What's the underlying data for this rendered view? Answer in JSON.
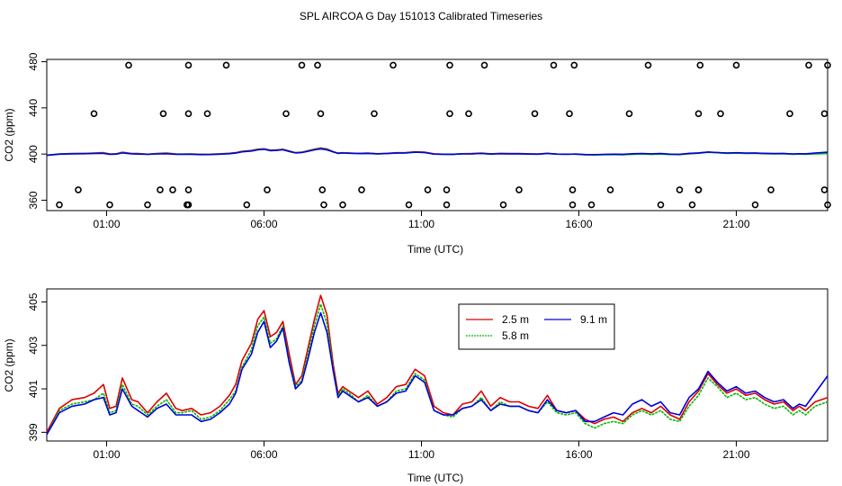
{
  "title": "SPL AIRCOA G  Day 151013  Calibrated Timeseries",
  "colors": {
    "2.5 m": "#dd0000",
    "5.8 m": "#00bb00",
    "9.1 m": "#0000dd"
  },
  "chart_data": [
    {
      "type": "line",
      "title": "SPL AIRCOA G  Day 151013  Calibrated Timeseries",
      "xlabel": "Time (UTC)",
      "ylabel": "CO2 (ppm)",
      "xlim": [
        -0.9,
        23.9
      ],
      "ylim": [
        351,
        482
      ],
      "x_ticks": [
        1,
        6,
        11,
        16,
        21
      ],
      "x_tick_labels": [
        "01:00",
        "06:00",
        "11:00",
        "16:00",
        "21:00"
      ],
      "y_ticks": [
        360,
        400,
        440,
        480
      ],
      "y_tick_labels": [
        "360",
        "400",
        "440",
        "480"
      ],
      "flag_markers": {
        "type": "scatter",
        "x": [
          -0.5,
          0.1,
          0.6,
          1.1,
          1.7,
          2.3,
          2.7,
          2.8,
          3.1,
          3.55,
          3.6,
          3.6,
          3.6,
          3.6,
          4.2,
          4.8,
          5.45,
          6.1,
          6.7,
          7.2,
          7.7,
          7.8,
          7.85,
          7.9,
          8.5,
          9.1,
          9.5,
          10.1,
          10.6,
          11.2,
          11.8,
          11.8,
          11.9,
          11.9,
          12.5,
          13.0,
          13.6,
          14.1,
          14.6,
          15.2,
          15.7,
          15.8,
          15.8,
          15.85,
          16.4,
          17.0,
          17.6,
          18.2,
          18.6,
          19.2,
          19.6,
          19.8,
          19.8,
          19.85,
          19.8,
          20.5,
          21.0,
          21.6,
          22.1,
          22.7,
          23.3,
          23.8,
          23.8,
          23.9,
          23.9
        ],
        "y": [
          356,
          369,
          435,
          356,
          477,
          356,
          369,
          435,
          369,
          356,
          369,
          435,
          477,
          356,
          435,
          477,
          356,
          369,
          435,
          477,
          477,
          435,
          369,
          356,
          356,
          369,
          435,
          477,
          356,
          369,
          356,
          369,
          435,
          477,
          435,
          477,
          356,
          369,
          435,
          477,
          435,
          369,
          356,
          477,
          356,
          369,
          435,
          477,
          356,
          369,
          356,
          369,
          435,
          477,
          369,
          435,
          477,
          356,
          369,
          435,
          477,
          369,
          435,
          477,
          356
        ]
      },
      "series": [
        {
          "name": "2.5 m",
          "color": "#dd0000",
          "x": [],
          "values": []
        },
        {
          "name": "5.8 m",
          "color": "#00bb00",
          "x": [],
          "values": []
        },
        {
          "name": "9.1 m",
          "color": "#0000dd",
          "x": [],
          "values": []
        }
      ],
      "series_ref": "co2_profile"
    },
    {
      "type": "line",
      "title": "",
      "xlabel": "Time (UTC)",
      "ylabel": "CO2 (ppm)",
      "xlim": [
        -0.9,
        23.9
      ],
      "ylim": [
        398.6,
        405.6
      ],
      "x_ticks": [
        1,
        6,
        11,
        16,
        21
      ],
      "x_tick_labels": [
        "01:00",
        "06:00",
        "11:00",
        "16:00",
        "21:00"
      ],
      "y_ticks": [
        399,
        401,
        403,
        405
      ],
      "y_tick_labels": [
        "399",
        "401",
        "403",
        "405"
      ],
      "legend": {
        "placement": "top-center",
        "entries": [
          "2.5 m",
          "5.8 m",
          "9.1 m"
        ]
      },
      "series_ref": "co2_profile"
    }
  ],
  "co2_profile": {
    "x": [
      -0.9,
      -0.5,
      -0.1,
      0.3,
      0.6,
      0.9,
      1.1,
      1.3,
      1.5,
      1.8,
      2.0,
      2.3,
      2.6,
      2.9,
      3.2,
      3.4,
      3.7,
      4.0,
      4.3,
      4.6,
      4.9,
      5.1,
      5.3,
      5.6,
      5.8,
      6.0,
      6.2,
      6.4,
      6.6,
      6.8,
      7.0,
      7.2,
      7.4,
      7.6,
      7.8,
      8.0,
      8.2,
      8.35,
      8.5,
      8.7,
      9.0,
      9.3,
      9.6,
      9.9,
      10.2,
      10.5,
      10.8,
      11.1,
      11.4,
      11.7,
      12.0,
      12.3,
      12.6,
      12.9,
      13.2,
      13.5,
      13.8,
      14.1,
      14.4,
      14.7,
      15.0,
      15.3,
      15.6,
      15.9,
      16.2,
      16.5,
      16.8,
      17.1,
      17.4,
      17.7,
      18.0,
      18.3,
      18.6,
      18.9,
      19.2,
      19.5,
      19.8,
      20.1,
      20.4,
      20.7,
      21.0,
      21.3,
      21.6,
      21.9,
      22.2,
      22.5,
      22.8,
      23.0,
      23.2,
      23.5,
      23.9
    ],
    "series": [
      {
        "name": "2.5 m",
        "values": [
          399.0,
          400.1,
          400.5,
          400.6,
          400.8,
          401.2,
          400.1,
          400.2,
          401.5,
          400.5,
          400.4,
          399.9,
          400.4,
          400.8,
          400.1,
          400.0,
          400.1,
          399.8,
          399.9,
          400.2,
          400.7,
          401.2,
          402.3,
          403.1,
          404.2,
          404.6,
          403.4,
          403.6,
          404.1,
          402.6,
          401.2,
          401.6,
          402.9,
          404.2,
          405.3,
          404.4,
          402.1,
          400.8,
          401.1,
          400.9,
          400.6,
          400.9,
          400.3,
          400.6,
          401.1,
          401.2,
          401.9,
          401.6,
          400.2,
          399.9,
          399.8,
          400.3,
          400.4,
          400.9,
          400.2,
          400.6,
          400.4,
          400.4,
          400.2,
          400.1,
          400.7,
          400.0,
          399.9,
          400.0,
          399.6,
          399.4,
          399.6,
          399.7,
          399.5,
          399.9,
          400.1,
          399.9,
          400.2,
          399.8,
          399.6,
          400.4,
          400.9,
          401.7,
          401.2,
          400.8,
          401.0,
          400.7,
          400.8,
          400.5,
          400.3,
          400.4,
          400.0,
          400.2,
          400.0,
          400.4,
          400.6
        ]
      },
      {
        "name": "5.8 m",
        "values": [
          398.9,
          400.0,
          400.3,
          400.4,
          400.5,
          400.8,
          399.9,
          400.0,
          401.2,
          400.3,
          400.2,
          399.8,
          400.2,
          400.5,
          399.9,
          399.9,
          400.0,
          399.6,
          399.7,
          400.0,
          400.5,
          400.9,
          402.0,
          402.8,
          403.9,
          404.3,
          403.1,
          403.3,
          403.9,
          402.3,
          401.1,
          401.4,
          402.6,
          403.9,
          404.9,
          404.0,
          401.9,
          400.7,
          401.0,
          400.8,
          400.4,
          400.7,
          400.2,
          400.4,
          400.9,
          401.0,
          401.7,
          401.4,
          400.0,
          399.8,
          399.7,
          400.1,
          400.2,
          400.6,
          400.0,
          400.4,
          400.2,
          400.2,
          400.0,
          399.9,
          400.4,
          399.9,
          399.8,
          399.9,
          399.4,
          399.2,
          399.4,
          399.5,
          399.4,
          399.8,
          400.0,
          399.8,
          400.0,
          399.6,
          399.5,
          400.2,
          400.7,
          401.5,
          401.1,
          400.6,
          400.8,
          400.5,
          400.6,
          400.3,
          400.1,
          400.2,
          399.8,
          400.0,
          399.8,
          400.2,
          400.4
        ]
      },
      {
        "name": "9.1 m",
        "values": [
          398.9,
          399.9,
          400.2,
          400.3,
          400.5,
          400.6,
          399.8,
          399.9,
          401.0,
          400.2,
          400.0,
          399.7,
          400.1,
          400.3,
          399.8,
          399.8,
          399.8,
          399.5,
          399.6,
          399.9,
          400.3,
          400.8,
          401.9,
          402.6,
          403.6,
          404.1,
          402.9,
          403.2,
          403.8,
          402.2,
          401.0,
          401.3,
          402.4,
          403.6,
          404.5,
          403.6,
          401.8,
          400.6,
          400.9,
          400.7,
          400.4,
          400.6,
          400.2,
          400.4,
          400.8,
          400.9,
          401.6,
          401.3,
          400.0,
          399.8,
          399.8,
          400.1,
          400.2,
          400.5,
          400.0,
          400.3,
          400.2,
          400.2,
          400.0,
          399.9,
          400.5,
          400.0,
          399.9,
          400.0,
          399.5,
          399.5,
          399.7,
          399.9,
          399.8,
          400.3,
          400.5,
          400.2,
          400.4,
          399.9,
          399.8,
          400.6,
          401.0,
          401.8,
          401.3,
          400.9,
          401.1,
          400.8,
          400.9,
          400.6,
          400.4,
          400.5,
          400.1,
          400.3,
          400.2,
          400.8,
          401.6
        ]
      }
    ]
  }
}
